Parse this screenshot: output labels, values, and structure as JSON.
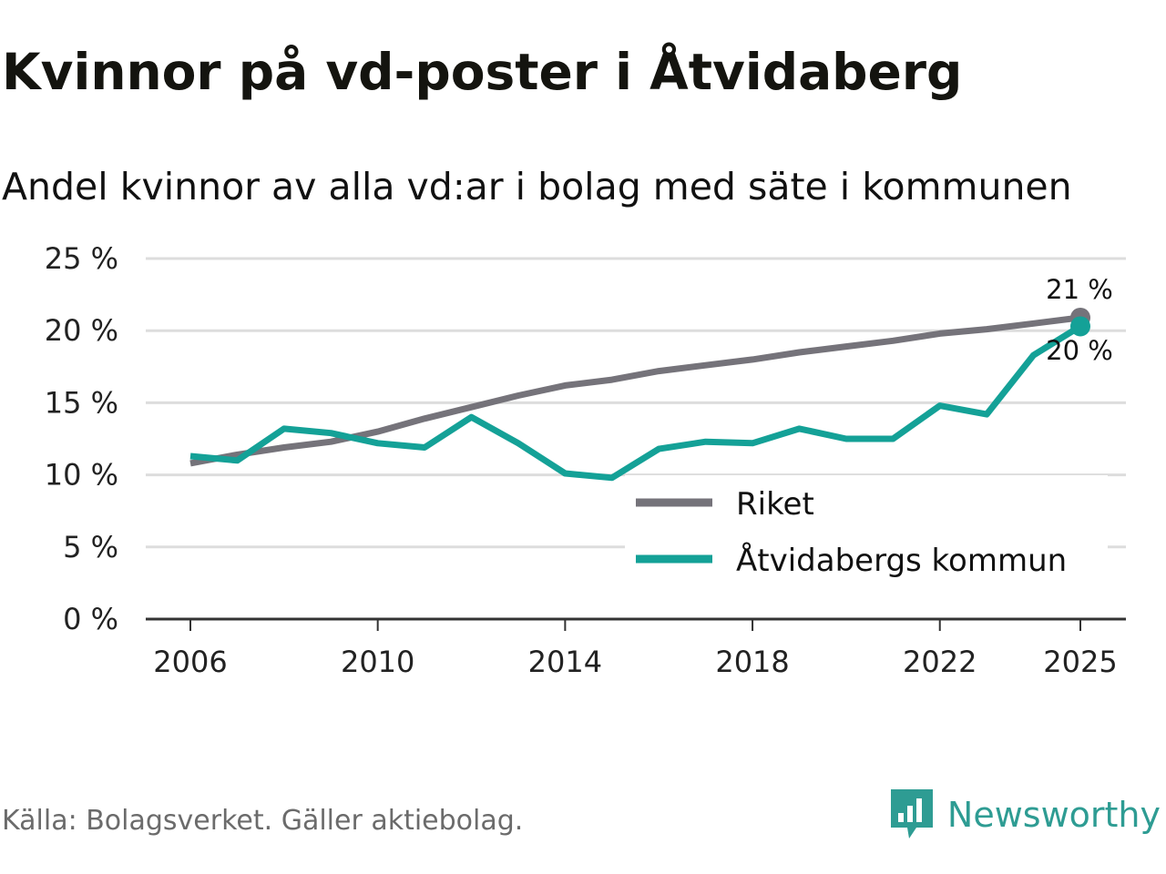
{
  "title": "Kvinnor på vd-poster i Åtvidaberg",
  "subtitle": "Andel kvinnor av alla vd:ar i bolag med säte i kommunen",
  "source": "Källa: Bolagsverket. Gäller aktiebolag.",
  "brand": {
    "name": "Newsworthy",
    "icon": "newsworthy-logo-icon",
    "color": "#2e9c93"
  },
  "chart_data": {
    "type": "line",
    "title": "Kvinnor på vd-poster i Åtvidaberg",
    "subtitle": "Andel kvinnor av alla vd:ar i bolag med säte i kommunen",
    "xlabel": "",
    "ylabel": "",
    "x": [
      2006,
      2007,
      2008,
      2009,
      2010,
      2011,
      2012,
      2013,
      2014,
      2015,
      2016,
      2017,
      2018,
      2019,
      2020,
      2021,
      2022,
      2023,
      2024,
      2025
    ],
    "xticks": [
      2006,
      2010,
      2014,
      2018,
      2022,
      2025
    ],
    "xtick_labels": [
      "2006",
      "2010",
      "2014",
      "2018",
      "2022",
      "2025"
    ],
    "xlim": [
      2005.0,
      2026.0
    ],
    "ylim": [
      0,
      25
    ],
    "yticks": [
      0,
      5,
      10,
      15,
      20,
      25
    ],
    "ytick_labels": [
      "0 %",
      "5 %",
      "10 %",
      "15 %",
      "20 %",
      "25 %"
    ],
    "grid": true,
    "legend_position": "bottom-right",
    "series": [
      {
        "name": "Riket",
        "color": "#75737a",
        "values": [
          10.8,
          11.4,
          11.9,
          12.3,
          13.0,
          13.9,
          14.7,
          15.5,
          16.2,
          16.6,
          17.2,
          17.6,
          18.0,
          18.5,
          18.9,
          19.3,
          19.8,
          20.1,
          20.5,
          20.9
        ],
        "end_label": "21 %"
      },
      {
        "name": "Åtvidabergs kommun",
        "color": "#14a197",
        "values": [
          11.3,
          11.0,
          13.2,
          12.9,
          12.2,
          11.9,
          14.0,
          12.2,
          10.1,
          9.8,
          11.8,
          12.3,
          12.2,
          13.2,
          12.5,
          12.5,
          14.8,
          14.2,
          18.3,
          20.3
        ],
        "end_label": "20 %"
      }
    ]
  }
}
